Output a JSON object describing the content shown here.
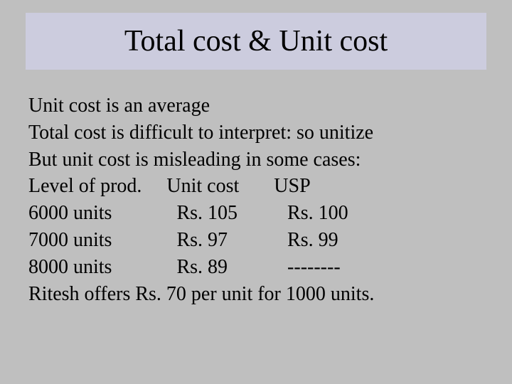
{
  "title": "Total cost & Unit cost",
  "lines": {
    "l1": "Unit cost is an average",
    "l2": "Total cost is difficult to interpret: so unitize",
    "l3": "But unit cost is misleading in some cases:",
    "l8": "Ritesh offers Rs. 70 per unit for 1000 units."
  },
  "table": {
    "h1": "Level of prod.",
    "h2": "Unit cost",
    "h3": "USP",
    "r1c1": "6000 units",
    "r1c2": "Rs. 105",
    "r1c3": "Rs. 100",
    "r2c1": "7000 units",
    "r2c2": "Rs. 97",
    "r2c3": "Rs. 99",
    "r3c1": "8000 units",
    "r3c2": "Rs. 89",
    "r3c3": "--------"
  },
  "colors": {
    "background": "#bfbfbf",
    "title_bg": "#ccccde",
    "text": "#000000"
  },
  "fonts": {
    "title_size_pt": 42,
    "body_size_pt": 28,
    "family": "Times New Roman"
  }
}
